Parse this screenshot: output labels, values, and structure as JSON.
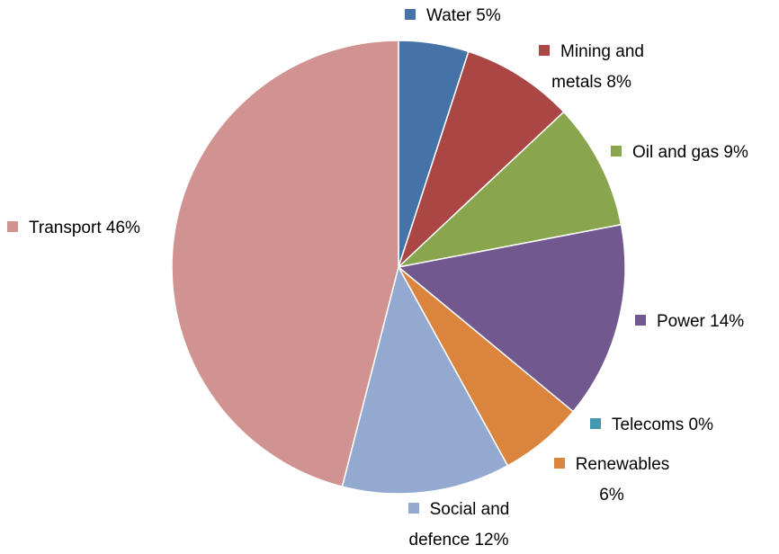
{
  "chart_data": {
    "type": "pie",
    "categories": [
      "Water",
      "Mining and metals",
      "Oil and gas",
      "Power",
      "Telecoms",
      "Renewables",
      "Social and defence",
      "Transport"
    ],
    "values": [
      5,
      8,
      9,
      14,
      0,
      6,
      12,
      46
    ],
    "value_labels": [
      "5%",
      "8%",
      "9%",
      "14%",
      "0%",
      "6%",
      "12%",
      "46%"
    ],
    "colors": [
      "#4572a7",
      "#aa4643",
      "#89a54e",
      "#71588f",
      "#4198af",
      "#db843d",
      "#93a9cf",
      "#d19392"
    ]
  }
}
